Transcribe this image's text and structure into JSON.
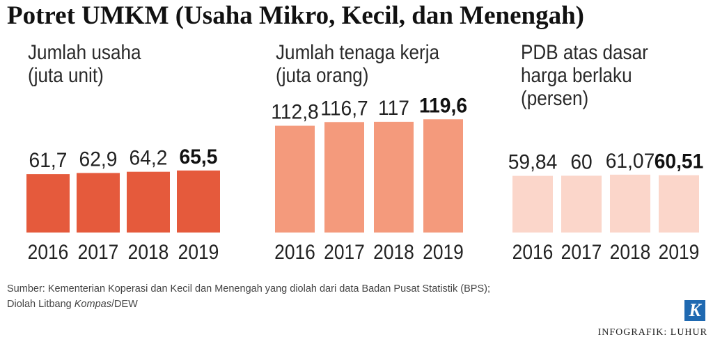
{
  "title": "Potret UMKM (Usaha Mikro, Kecil, dan Menengah)",
  "chart_data": [
    {
      "type": "bar",
      "title_lines": [
        "Jumlah usaha",
        "(juta unit)"
      ],
      "categories": [
        "2016",
        "2017",
        "2018",
        "2019"
      ],
      "values": [
        61.7,
        62.9,
        64.2,
        65.5
      ],
      "value_labels": [
        "61,7",
        "62,9",
        "64,2",
        "65,5"
      ],
      "bold_index": 3,
      "color": "#E55A3C",
      "grid": false
    },
    {
      "type": "bar",
      "title_lines": [
        "Jumlah tenaga kerja",
        "(juta orang)"
      ],
      "categories": [
        "2016",
        "2017",
        "2018",
        "2019"
      ],
      "values": [
        112.8,
        116.7,
        117,
        119.6
      ],
      "value_labels": [
        "112,8",
        "116,7",
        "117",
        "119,6"
      ],
      "bold_index": 3,
      "color": "#F49A7C",
      "grid": false
    },
    {
      "type": "bar",
      "title_lines": [
        "PDB atas dasar",
        "harga berlaku",
        "(persen)"
      ],
      "categories": [
        "2016",
        "2017",
        "2018",
        "2019"
      ],
      "values": [
        59.84,
        60,
        61.07,
        60.51
      ],
      "value_labels": [
        "59,84",
        "60",
        "61,07",
        "60,51"
      ],
      "bold_index": 3,
      "color": "#FBD6CA",
      "grid": false
    }
  ],
  "source": {
    "line1": "Sumber: Kementerian Koperasi dan Kecil dan Menengah yang diolah dari data Badan Pusat Statistik (BPS);",
    "line2_prefix": "Diolah Litbang ",
    "line2_italic": "Kompas",
    "line2_suffix": "/DEW"
  },
  "logo": {
    "letter": "K",
    "color": "#1F69B1"
  },
  "credit": "INFOGRAFIK: LUHUR"
}
